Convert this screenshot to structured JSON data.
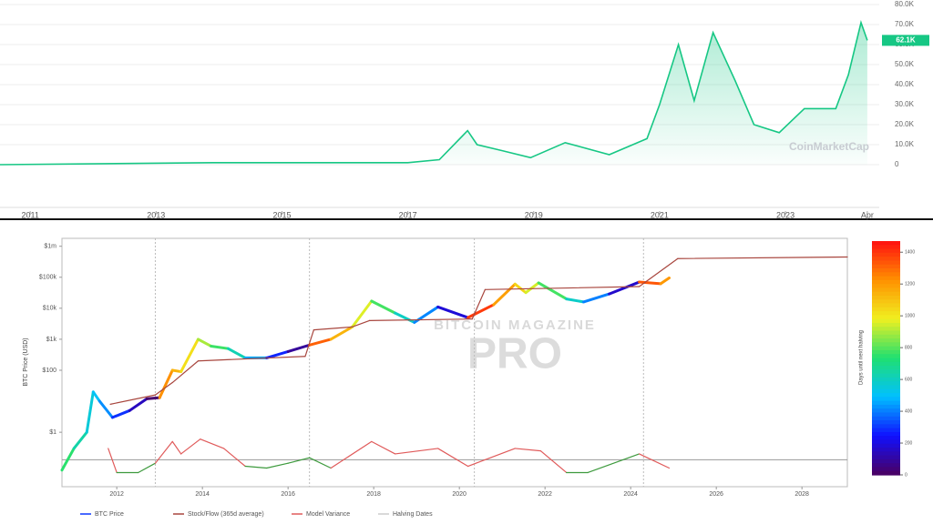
{
  "chart_data": [
    {
      "type": "area",
      "watermark": "CoinMarketCap",
      "color": "#16c784",
      "x": [
        2010.52,
        2013.9,
        2017.0,
        2017.5,
        2017.95,
        2018.1,
        2018.5,
        2018.95,
        2019.5,
        2020.2,
        2020.8,
        2021.0,
        2021.3,
        2021.55,
        2021.85,
        2022.2,
        2022.5,
        2022.9,
        2023.3,
        2023.8,
        2024.0,
        2024.2,
        2024.3
      ],
      "values": [
        0,
        1000,
        1000,
        2500,
        17000,
        10000,
        7000,
        3500,
        11000,
        5000,
        13000,
        30000,
        60000,
        32000,
        66000,
        42000,
        20000,
        16000,
        28000,
        28000,
        45000,
        71000,
        62100
      ],
      "last_price": {
        "value": 62100,
        "label": "62.1K"
      },
      "xlim": [
        2010.52,
        2024.49
      ],
      "xticks": [
        2011,
        2013,
        2015,
        2017,
        2019,
        2021,
        2023,
        {
          "value": 2024.3,
          "label": "Apr"
        }
      ],
      "ylim": [
        0,
        80000
      ],
      "yticks": [
        0,
        {
          "value": 10000,
          "label": "10.0K"
        },
        {
          "value": 20000,
          "label": "20.0K"
        },
        {
          "value": 30000,
          "label": "30.0K"
        },
        {
          "value": 40000,
          "label": "40.0K"
        },
        {
          "value": 50000,
          "label": "50.0K"
        },
        {
          "value": 60000,
          "label": "60.0K"
        },
        {
          "value": 70000,
          "label": "70.0K"
        },
        {
          "value": 80000,
          "label": "80.0K"
        }
      ],
      "grid": true
    },
    {
      "type": "line",
      "ylabel": "BTC Price (USD)",
      "watermark": [
        "BITCOIN MAGAZINE",
        "PRO"
      ],
      "log_scale": true,
      "xlim": [
        2010.72,
        2029.06
      ],
      "xticks": [
        2012,
        2014,
        2016,
        2018,
        2020,
        2022,
        2024,
        2026,
        2028
      ],
      "ylim": [
        0.0175,
        1800000
      ],
      "yticks": [
        {
          "value": 1,
          "label": "$1"
        },
        {
          "value": 100,
          "label": "$100"
        },
        {
          "value": 1000,
          "label": "$1k"
        },
        {
          "value": 10000,
          "label": "$10k"
        },
        {
          "value": 100000,
          "label": "$100k"
        },
        {
          "value": 1000000,
          "label": "$1m"
        }
      ],
      "halvings": [
        2012.9,
        2016.5,
        2020.35,
        2024.3
      ],
      "halving_name": "Halving Dates",
      "colorbar": {
        "label": "Days until next halving",
        "lim": [
          0,
          1470
        ],
        "ticks": [
          0,
          200,
          400,
          600,
          800,
          1000,
          1200,
          1400
        ],
        "colorscale": [
          "#4b0060",
          "#1010ff",
          "#00c0ff",
          "#20e070",
          "#f0f020",
          "#ff9000",
          "#ff1010"
        ]
      },
      "variance_reference": 0.13,
      "series": [
        {
          "name": "BTC Price",
          "color": "#7fd36a",
          "x": [
            2010.72,
            2011.0,
            2011.3,
            2011.45,
            2011.6,
            2011.9,
            2012.3,
            2012.7,
            2013.0,
            2013.3,
            2013.5,
            2013.9,
            2014.2,
            2014.6,
            2015.0,
            2015.5,
            2016.0,
            2016.5,
            2017.0,
            2017.5,
            2017.95,
            2018.5,
            2018.95,
            2019.5,
            2020.2,
            2020.8,
            2021.3,
            2021.55,
            2021.85,
            2022.5,
            2022.9,
            2023.5,
            2024.2,
            2024.7,
            2024.9
          ],
          "values": [
            0.06,
            0.3,
            1,
            20,
            10,
            3,
            5,
            12,
            13,
            100,
            90,
            1000,
            600,
            500,
            250,
            250,
            400,
            650,
            1000,
            2500,
            17000,
            7000,
            3500,
            11000,
            5000,
            13000,
            60000,
            32000,
            66000,
            20000,
            16000,
            29000,
            70000,
            62000,
            95000
          ]
        },
        {
          "name": "Stock/Flow (365d average)",
          "color": "#a8463e",
          "x": [
            2011.85,
            2012.9,
            2013.3,
            2013.9,
            2016.4,
            2016.6,
            2017.5,
            2017.9,
            2020.3,
            2020.6,
            2024.2,
            2025.1,
            2029.06
          ],
          "values": [
            8,
            16,
            40,
            200,
            280,
            2000,
            2500,
            4000,
            4500,
            40000,
            50000,
            400000,
            450000
          ]
        },
        {
          "name": "Model Variance",
          "color": "#e05a5a",
          "color_below": "#3d9a3d",
          "x": [
            2011.8,
            2012.0,
            2012.5,
            2012.9,
            2013.3,
            2013.5,
            2013.95,
            2014.5,
            2015.0,
            2015.5,
            2016.0,
            2016.5,
            2017.0,
            2017.95,
            2018.5,
            2019.5,
            2020.2,
            2021.3,
            2021.9,
            2022.5,
            2023.0,
            2024.2,
            2024.9
          ],
          "values": [
            0.3,
            0.05,
            0.05,
            0.1,
            0.5,
            0.2,
            0.6,
            0.3,
            0.08,
            0.07,
            0.1,
            0.15,
            0.07,
            0.5,
            0.2,
            0.3,
            0.08,
            0.3,
            0.25,
            0.05,
            0.05,
            0.2,
            0.07
          ]
        }
      ]
    }
  ]
}
